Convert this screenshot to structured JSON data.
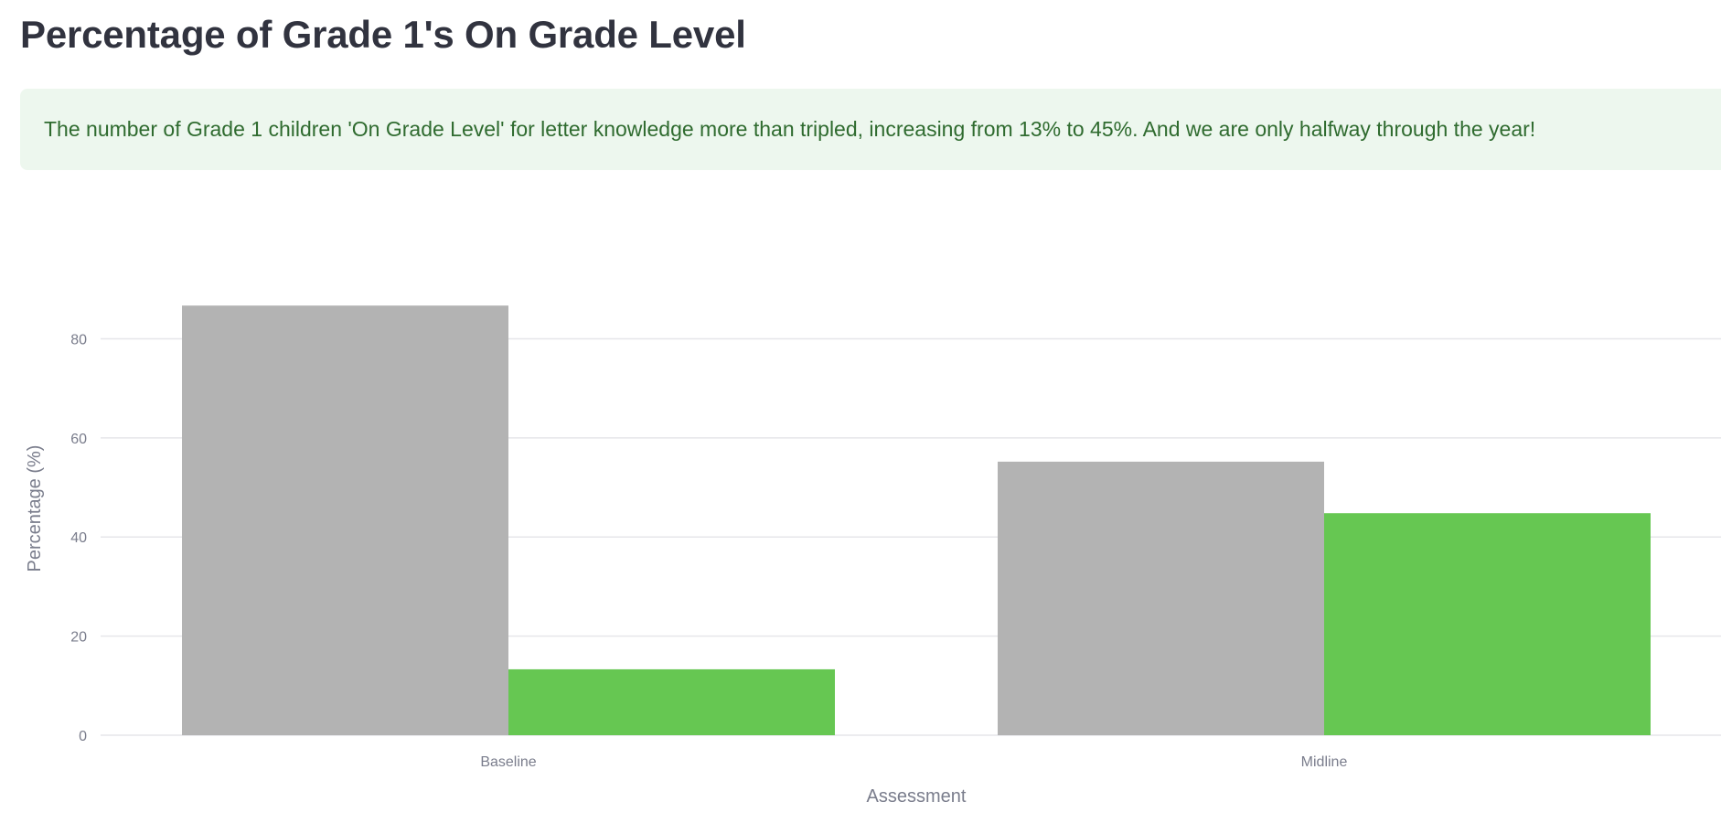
{
  "page": {
    "title": "Percentage of Grade 1's On Grade Level",
    "callout": "The number of Grade 1 children 'On Grade Level' for letter knowledge more than tripled, increasing from 13% to 45%. And we are only halfway through the year!"
  },
  "colors": {
    "series_1": "#b3b3b3",
    "series_2": "#66c752",
    "callout_bg": "#edf7ee",
    "callout_text": "#2f6b2f",
    "gridline": "#e6e6ea",
    "axis_text": "#7a7d8c"
  },
  "chart_data": {
    "type": "bar",
    "title": "",
    "xlabel": "Assessment",
    "ylabel": "Percentage (%)",
    "categories": [
      "Baseline",
      "Midline"
    ],
    "series": [
      {
        "values": [
          86.7,
          55.2
        ],
        "color": "#b3b3b3"
      },
      {
        "values": [
          13.3,
          44.8
        ],
        "color": "#66c752"
      }
    ],
    "ylim": [
      0,
      93
    ],
    "yticks": [
      0,
      20,
      40,
      60,
      80
    ],
    "grid": true,
    "legend": "none"
  }
}
